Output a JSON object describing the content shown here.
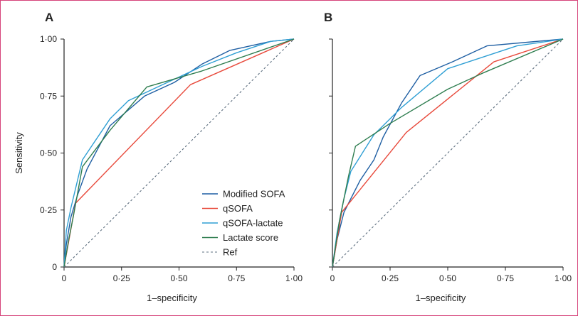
{
  "chart_data": [
    {
      "type": "line",
      "panel_label": "A",
      "xlabel": "1–specificity",
      "ylabel": "Sensitivity",
      "xlim": [
        0,
        1
      ],
      "ylim": [
        0,
        1
      ],
      "grid": false,
      "xticks": [
        "0",
        "0·25",
        "0·50",
        "0·75",
        "1·00"
      ],
      "yticks": [
        "0",
        "0·25",
        "0·50",
        "0·75",
        "1·00"
      ],
      "legend_position": "bottom-right",
      "series": [
        {
          "name": "Modified SOFA",
          "color": "#1f5fa3",
          "points": [
            [
              0,
              0
            ],
            [
              0.01,
              0.1
            ],
            [
              0.03,
              0.22
            ],
            [
              0.06,
              0.32
            ],
            [
              0.1,
              0.43
            ],
            [
              0.2,
              0.62
            ],
            [
              0.35,
              0.75
            ],
            [
              0.48,
              0.81
            ],
            [
              0.6,
              0.89
            ],
            [
              0.72,
              0.95
            ],
            [
              0.9,
              0.99
            ],
            [
              1,
              1
            ]
          ]
        },
        {
          "name": "qSOFA",
          "color": "#e84a3c",
          "points": [
            [
              0,
              0
            ],
            [
              0.05,
              0.28
            ],
            [
              0.55,
              0.8
            ],
            [
              1,
              1
            ]
          ]
        },
        {
          "name": "qSOFA-lactate",
          "color": "#2f9fd4",
          "points": [
            [
              0,
              0
            ],
            [
              0.01,
              0.16
            ],
            [
              0.03,
              0.26
            ],
            [
              0.08,
              0.47
            ],
            [
              0.2,
              0.65
            ],
            [
              0.28,
              0.73
            ],
            [
              0.45,
              0.81
            ],
            [
              0.6,
              0.88
            ],
            [
              0.75,
              0.94
            ],
            [
              0.9,
              0.99
            ],
            [
              1,
              1
            ]
          ]
        },
        {
          "name": "Lactate score",
          "color": "#2e7d4f",
          "points": [
            [
              0,
              0
            ],
            [
              0.02,
              0.12
            ],
            [
              0.04,
              0.22
            ],
            [
              0.08,
              0.44
            ],
            [
              0.2,
              0.6
            ],
            [
              0.36,
              0.79
            ],
            [
              0.6,
              0.86
            ],
            [
              1,
              1
            ]
          ]
        },
        {
          "name": "Ref",
          "color": "#5f7080",
          "dashed": true,
          "points": [
            [
              0,
              0
            ],
            [
              1,
              1
            ]
          ]
        }
      ]
    },
    {
      "type": "line",
      "panel_label": "B",
      "xlabel": "1–specificity",
      "ylabel": "",
      "xlim": [
        0,
        1
      ],
      "ylim": [
        0,
        1
      ],
      "grid": false,
      "xticks": [
        "0",
        "0·25",
        "0·50",
        "0·75",
        "1·00"
      ],
      "series": [
        {
          "name": "Modified SOFA",
          "color": "#1f5fa3",
          "points": [
            [
              0,
              0
            ],
            [
              0.02,
              0.12
            ],
            [
              0.05,
              0.24
            ],
            [
              0.08,
              0.3
            ],
            [
              0.12,
              0.38
            ],
            [
              0.18,
              0.47
            ],
            [
              0.22,
              0.57
            ],
            [
              0.3,
              0.72
            ],
            [
              0.38,
              0.84
            ],
            [
              0.52,
              0.9
            ],
            [
              0.67,
              0.97
            ],
            [
              1,
              1
            ]
          ]
        },
        {
          "name": "qSOFA",
          "color": "#e84a3c",
          "points": [
            [
              0,
              0
            ],
            [
              0.04,
              0.24
            ],
            [
              0.32,
              0.59
            ],
            [
              0.7,
              0.9
            ],
            [
              1,
              1
            ]
          ]
        },
        {
          "name": "qSOFA-lactate",
          "color": "#2f9fd4",
          "points": [
            [
              0,
              0
            ],
            [
              0.02,
              0.15
            ],
            [
              0.05,
              0.3
            ],
            [
              0.08,
              0.42
            ],
            [
              0.18,
              0.58
            ],
            [
              0.3,
              0.7
            ],
            [
              0.5,
              0.87
            ],
            [
              0.8,
              0.97
            ],
            [
              1,
              1
            ]
          ]
        },
        {
          "name": "Lactate score",
          "color": "#2e7d4f",
          "points": [
            [
              0,
              0
            ],
            [
              0.03,
              0.2
            ],
            [
              0.07,
              0.4
            ],
            [
              0.1,
              0.53
            ],
            [
              0.25,
              0.63
            ],
            [
              0.5,
              0.78
            ],
            [
              0.65,
              0.85
            ],
            [
              1,
              1
            ]
          ]
        },
        {
          "name": "Ref",
          "color": "#5f7080",
          "dashed": true,
          "points": [
            [
              0,
              0
            ],
            [
              1,
              1
            ]
          ]
        }
      ]
    }
  ]
}
